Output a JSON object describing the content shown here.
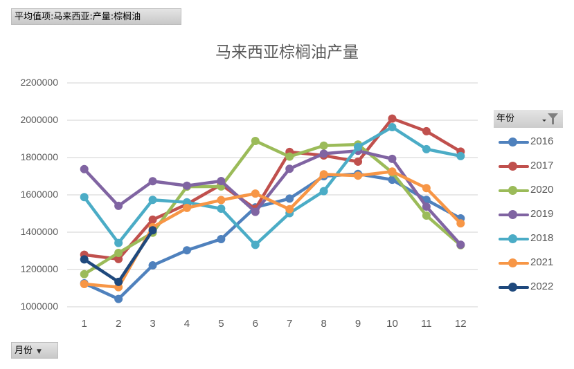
{
  "pivot": {
    "value_field_label": "平均值项:马来西亚:产量:棕榈油",
    "axis_field_label": "月份",
    "legend_field_label": "年份"
  },
  "chart_data": {
    "type": "line",
    "title": "马来西亚棕榈油产量",
    "xlabel": "",
    "ylabel": "",
    "categories": [
      "1",
      "2",
      "3",
      "4",
      "5",
      "6",
      "7",
      "8",
      "9",
      "10",
      "11",
      "12"
    ],
    "ylim": [
      1000000,
      2200000
    ],
    "yticks": [
      "2200000",
      "2000000",
      "1800000",
      "1600000",
      "1400000",
      "1200000",
      "1000000"
    ],
    "grid": true,
    "legend_position": "right",
    "series": [
      {
        "name": "2016",
        "color": "#4f81bd",
        "values": [
          1126000,
          1042000,
          1222000,
          1303000,
          1363000,
          1533000,
          1580000,
          1700000,
          1712000,
          1681000,
          1573000,
          1474000
        ]
      },
      {
        "name": "2017",
        "color": "#c0504d",
        "values": [
          1279000,
          1256000,
          1467000,
          1550000,
          1655000,
          1525000,
          1830000,
          1811000,
          1778000,
          2009000,
          1941000,
          1832000
        ]
      },
      {
        "name": "2020",
        "color": "#9bbb59",
        "values": [
          1175000,
          1289000,
          1397000,
          1644000,
          1645000,
          1889000,
          1805000,
          1864000,
          1870000,
          1720000,
          1489000,
          1330000
        ]
      },
      {
        "name": "2019",
        "color": "#8064a2",
        "values": [
          1738000,
          1541000,
          1673000,
          1649000,
          1674000,
          1509000,
          1740000,
          1821000,
          1836000,
          1793000,
          1537000,
          1333000
        ]
      },
      {
        "name": "2018",
        "color": "#4bacc6",
        "values": [
          1588000,
          1342000,
          1573000,
          1560000,
          1526000,
          1332000,
          1502000,
          1620000,
          1857000,
          1963000,
          1845000,
          1808000
        ]
      },
      {
        "name": "2021",
        "color": "#f79646",
        "values": [
          1122000,
          1105000,
          1427000,
          1530000,
          1572000,
          1607000,
          1523000,
          1710000,
          1703000,
          1725000,
          1636000,
          1447000
        ]
      },
      {
        "name": "2022",
        "color": "#1f497d",
        "values": [
          1254000,
          1134000,
          1410000
        ]
      }
    ]
  },
  "colors": {
    "gridline": "#d9d9d9",
    "axis_text": "#595959",
    "field_button_bg": "#d4d4d4"
  }
}
